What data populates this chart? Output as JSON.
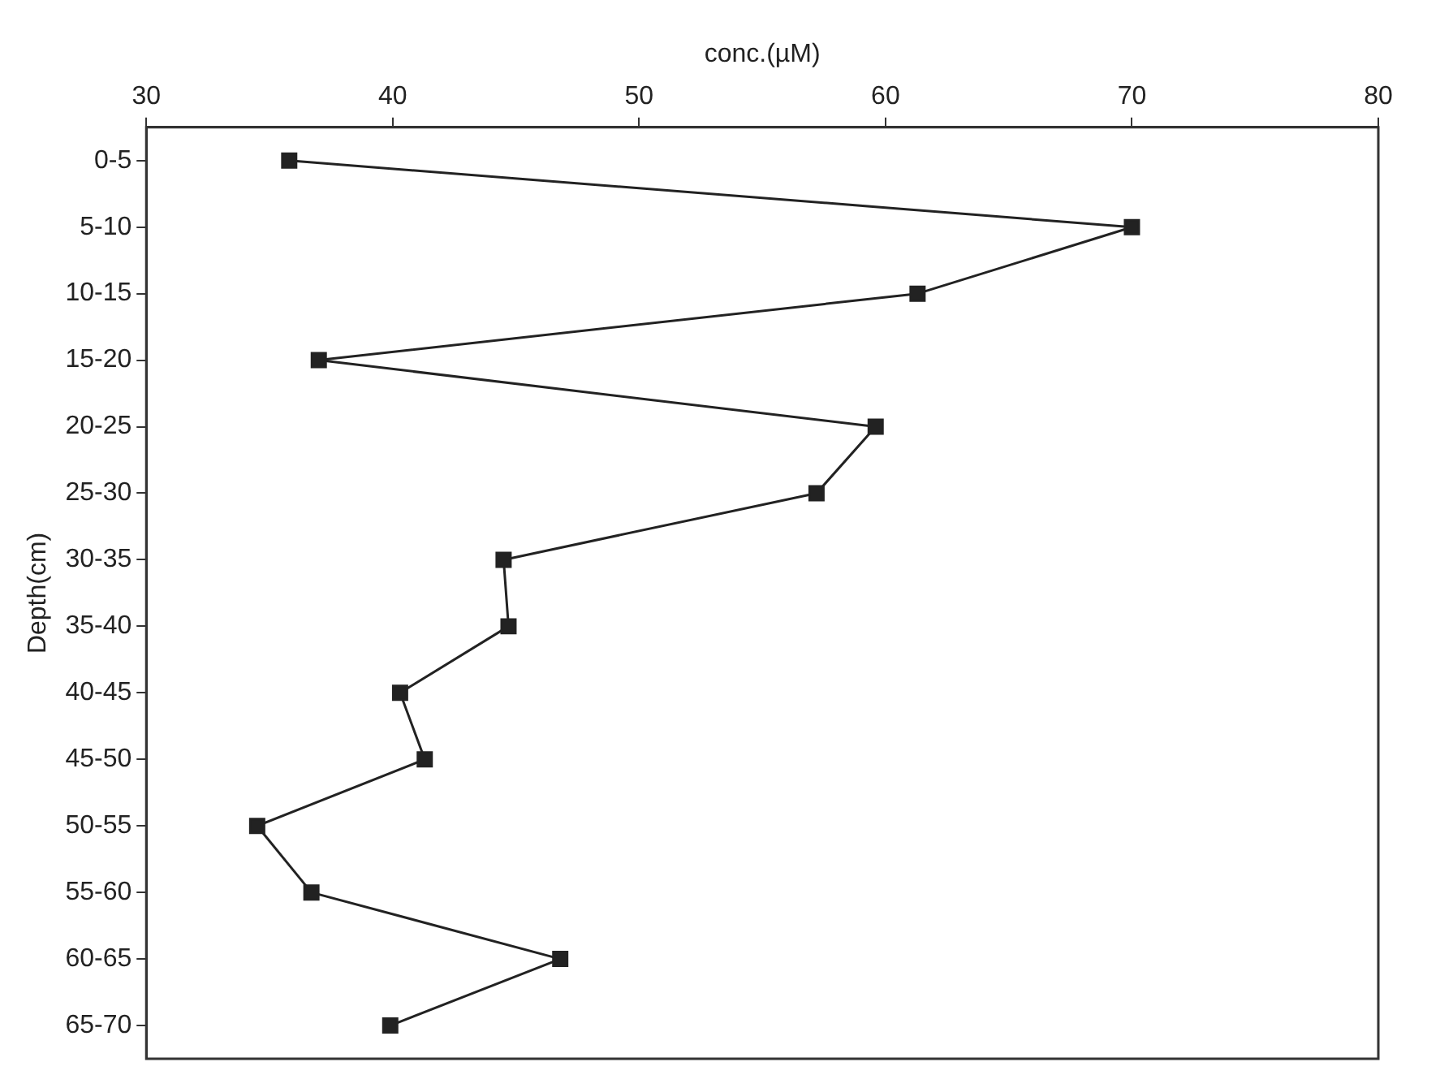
{
  "chart_data": {
    "type": "line",
    "xlabel": "conc.(µM)",
    "ylabel": "Depth(cm)",
    "categories": [
      "0-5",
      "5-10",
      "10-15",
      "15-20",
      "20-25",
      "25-30",
      "30-35",
      "35-40",
      "40-45",
      "45-50",
      "50-55",
      "55-60",
      "60-65",
      "65-70"
    ],
    "series": [
      {
        "color": "#222222",
        "values": [
          35.8,
          70.0,
          61.3,
          37.0,
          59.6,
          57.2,
          44.5,
          44.7,
          40.3,
          41.3,
          34.5,
          36.7,
          46.8,
          39.9
        ]
      }
    ],
    "orientation": "horizontal",
    "xlim": [
      30,
      80
    ],
    "xticks": [
      30,
      40,
      50,
      60,
      70,
      80
    ],
    "grid": false,
    "legend": false,
    "marker": "square",
    "line_style": "solid"
  }
}
